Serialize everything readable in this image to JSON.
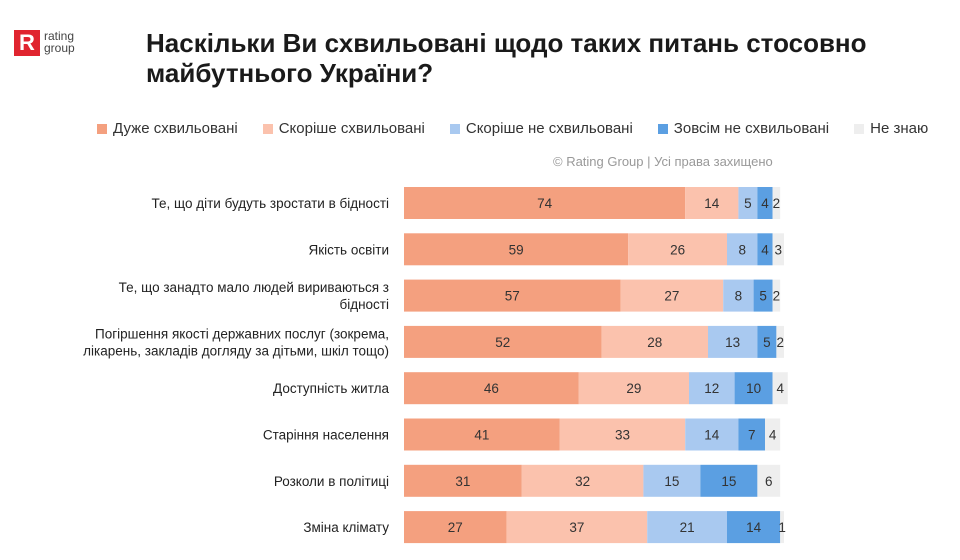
{
  "logo": {
    "mark": "R",
    "line1": "rating",
    "line2": "group"
  },
  "title": "Наскільки Ви схвильовані щодо таких питань стосовно майбутнього України?",
  "copyright": "© Rating Group | Усі права захищено",
  "colors": {
    "very": "#f4a07f",
    "rather": "#fbc2ad",
    "rather_not": "#a9c9f0",
    "not_at_all": "#5b9fe2",
    "dont_know": "#eeeeee"
  },
  "chart_data": {
    "type": "bar",
    "orientation": "horizontal",
    "stacked": true,
    "categories": [
      "Те, що діти будуть зростати в бідності",
      "Якість освіти",
      "Те, що занадто мало людей вириваються з бідності",
      "Погіршення якості державних послуг (зокрема, лікарень, закладів догляду за дітьми, шкіл тощо)",
      "Доступність житла",
      "Старіння населення",
      "Розколи в політиці",
      "Зміна клімату"
    ],
    "category_lines": [
      [
        "Те, що діти будуть зростати в бідності"
      ],
      [
        "Якість освіти"
      ],
      [
        "Те, що занадто мало людей вириваються з",
        "бідності"
      ],
      [
        "Погіршення якості державних послуг (зокрема,",
        "лікарень, закладів догляду за дітьми, шкіл тощо)"
      ],
      [
        "Доступність житла"
      ],
      [
        "Старіння населення"
      ],
      [
        "Розколи в політиці"
      ],
      [
        "Зміна клімату"
      ]
    ],
    "series": [
      {
        "name": "Дуже схвильовані",
        "color": "#f4a07f",
        "values": [
          74,
          59,
          57,
          52,
          46,
          41,
          31,
          27
        ]
      },
      {
        "name": "Скоріше схвильовані",
        "color": "#fbc2ad",
        "values": [
          14,
          26,
          27,
          28,
          29,
          33,
          32,
          37
        ]
      },
      {
        "name": "Скоріше не схвильовані",
        "color": "#a9c9f0",
        "values": [
          5,
          8,
          8,
          13,
          12,
          14,
          15,
          21
        ]
      },
      {
        "name": "Зовсім не схвильовані",
        "color": "#5b9fe2",
        "values": [
          4,
          4,
          5,
          5,
          10,
          7,
          15,
          14
        ]
      },
      {
        "name": "Не знаю",
        "color": "#eeeeee",
        "values": [
          2,
          3,
          2,
          2,
          4,
          4,
          6,
          1
        ]
      }
    ],
    "xlim": [
      0,
      100
    ],
    "grid": false,
    "legend_position": "top"
  }
}
